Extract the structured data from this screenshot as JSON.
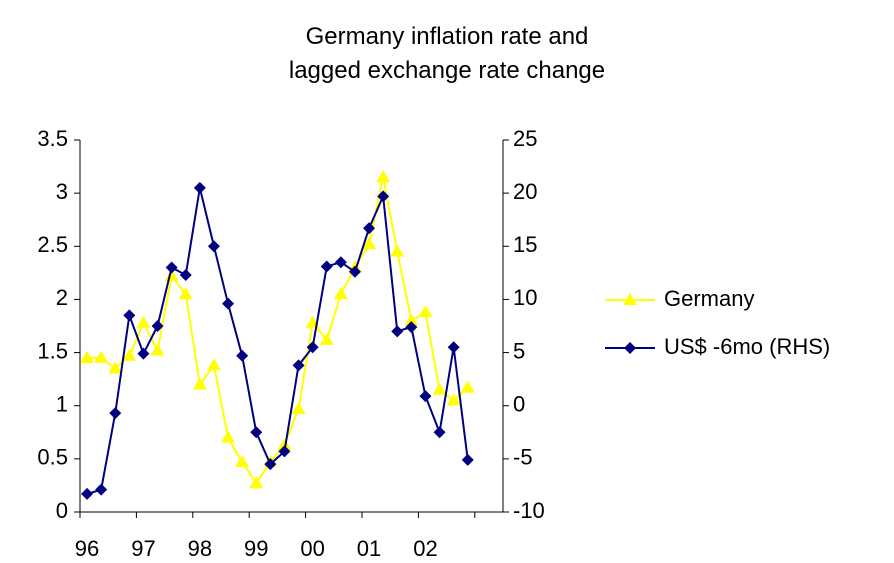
{
  "chart_data": {
    "type": "line",
    "title": "Germany inflation rate and lagged exchange rate change",
    "categories": [
      "96",
      null,
      null,
      null,
      "97",
      null,
      null,
      null,
      "98",
      null,
      null,
      null,
      "99",
      null,
      null,
      null,
      "00",
      null,
      null,
      null,
      "01",
      null,
      null,
      null,
      "02",
      null,
      null,
      null,
      null,
      null
    ],
    "series": [
      {
        "name": "Germany",
        "color": "#ffff00",
        "marker": "triangle",
        "axis": "y",
        "values": [
          1.45,
          1.45,
          1.35,
          1.47,
          1.78,
          1.52,
          2.22,
          2.05,
          1.2,
          1.38,
          0.7,
          0.47,
          0.27,
          0.47,
          0.63,
          0.97,
          1.78,
          1.62,
          2.05,
          2.3,
          2.52,
          3.15,
          2.45,
          1.8,
          1.88,
          1.15,
          1.05,
          1.17,
          null,
          null
        ]
      },
      {
        "name": "US$ -6mo (RHS)",
        "color": "#000080",
        "marker": "diamond",
        "axis": "y2",
        "values": [
          -8.3,
          -7.9,
          -0.7,
          8.5,
          4.9,
          7.5,
          13,
          12.3,
          20.5,
          15,
          9.6,
          4.7,
          -2.5,
          -5.5,
          -4.3,
          3.8,
          5.5,
          13.1,
          13.5,
          12.6,
          16.7,
          19.7,
          7,
          7.4,
          0.9,
          -2.5,
          5.5,
          -5.1,
          null,
          null
        ]
      }
    ],
    "ylim": [
      0,
      3.5
    ],
    "yticks": [
      0,
      0.5,
      1,
      1.5,
      2,
      2.5,
      3,
      3.5
    ],
    "y2lim": [
      -10,
      25
    ],
    "y2ticks": [
      -10,
      -5,
      0,
      5,
      10,
      15,
      20,
      25
    ],
    "legend": "right",
    "grid": false
  }
}
